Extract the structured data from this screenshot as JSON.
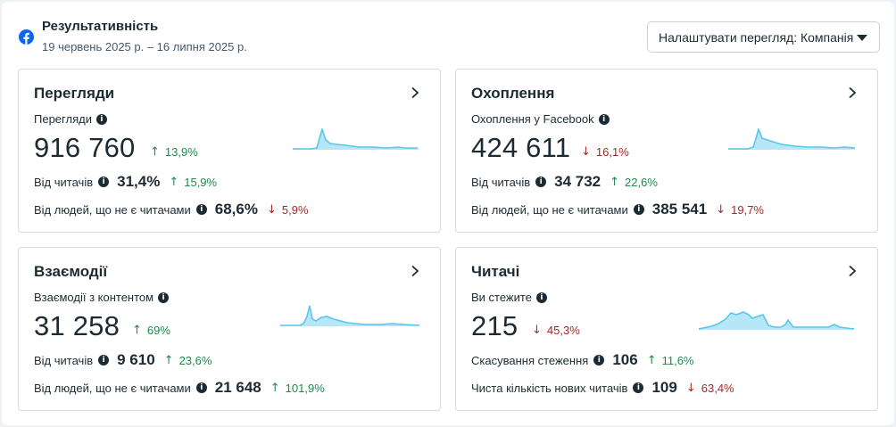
{
  "header": {
    "title": "Результативність",
    "date_range": "19 червень 2025 р. – 16 липня 2025 р.",
    "view_button": "Налаштувати перегляд: Компанія"
  },
  "colors": {
    "up": "#1f8a4c",
    "down": "#a32a2a",
    "spark_fill": "#b7e6f7",
    "spark_line": "#57c7ee",
    "brand": "#0866ff"
  },
  "cards": [
    {
      "title": "Перегляди",
      "metric_label": "Перегляди",
      "big_value": "916 760",
      "delta": "13,9%",
      "delta_dir": "up",
      "rows": [
        {
          "label": "Від читачів",
          "value": "31,4%",
          "delta": "15,9%",
          "dir": "up"
        },
        {
          "label": "Від людей, що не є читачами",
          "value": "68,6%",
          "delta": "5,9%",
          "dir": "down"
        }
      ]
    },
    {
      "title": "Охоплення",
      "metric_label": "Охоплення у Facebook",
      "big_value": "424 611",
      "delta": "16,1%",
      "delta_dir": "down",
      "rows": [
        {
          "label": "Від читачів",
          "value": "34 732",
          "delta": "22,6%",
          "dir": "up"
        },
        {
          "label": "Від людей, що не є читачами",
          "value": "385 541",
          "delta": "19,7%",
          "dir": "down"
        }
      ]
    },
    {
      "title": "Взаємодії",
      "metric_label": "Взаємодії з контентом",
      "big_value": "31 258",
      "delta": "69%",
      "delta_dir": "up",
      "rows": [
        {
          "label": "Від читачів",
          "value": "9 610",
          "delta": "23,6%",
          "dir": "up"
        },
        {
          "label": "Від людей, що не є читачами",
          "value": "21 648",
          "delta": "101,9%",
          "dir": "up"
        }
      ]
    },
    {
      "title": "Читачі",
      "metric_label": "Ви стежите",
      "big_value": "215",
      "delta": "45,3%",
      "delta_dir": "down",
      "rows": [
        {
          "label": "Скасування стеження",
          "value": "106",
          "delta": "11,6%",
          "dir": "up"
        },
        {
          "label": "Чиста кількість нових читачів",
          "value": "109",
          "delta": "63,4%",
          "dir": "down"
        }
      ]
    }
  ],
  "arrows": {
    "up": "↑",
    "down": "↓"
  },
  "icons": {
    "info": "i",
    "chevron": "chevron-right-icon",
    "facebook": "facebook-icon",
    "dropdown": "caret-down-icon"
  }
}
